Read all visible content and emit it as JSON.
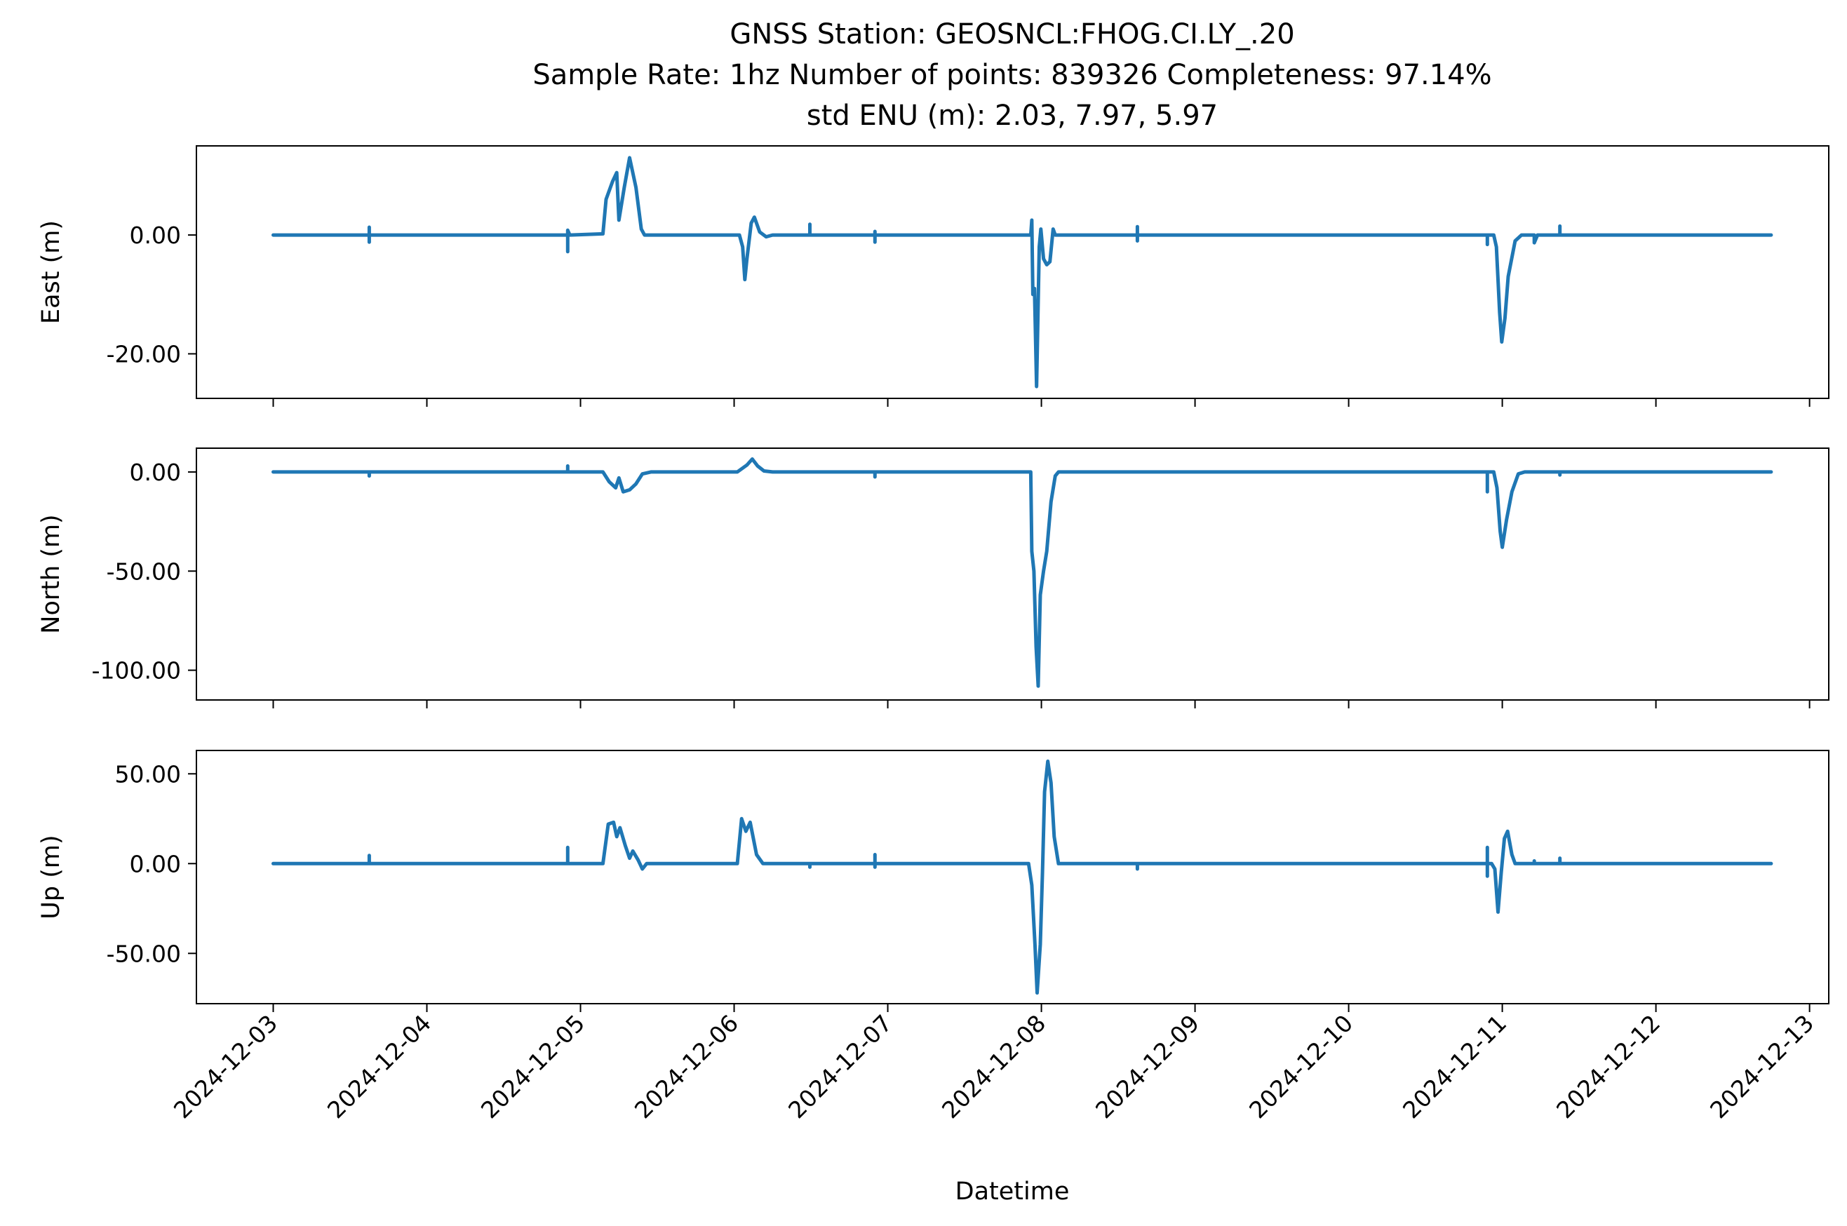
{
  "figure": {
    "title_lines": [
      "GNSS Station: GEOSNCL:FHOG.CI.LY_.20",
      "Sample Rate: 1hz   Number of points: 839326    Completeness:  97.14%",
      "std ENU (m):  2.03, 7.97, 5.97"
    ]
  },
  "chart_data": {
    "type": "line",
    "xlabel": "Datetime",
    "xlim": [
      "2024-12-02 12:00",
      "2024-12-13 03:00"
    ],
    "x_ticks": [
      "2024-12-03",
      "2024-12-04",
      "2024-12-05",
      "2024-12-06",
      "2024-12-07",
      "2024-12-08",
      "2024-12-09",
      "2024-12-10",
      "2024-12-11",
      "2024-12-12",
      "2024-12-13"
    ],
    "line_color": "#1f77b4",
    "grid": false,
    "legend": "none",
    "panels": [
      {
        "ylabel": "East (m)",
        "ylim": [
          -27.5,
          15.0
        ],
        "y_ticks": [
          0,
          -20
        ],
        "y_tick_labels": [
          "0.00",
          "-20.00"
        ],
        "series": [
          {
            "points": [
              [
                "2024-12-03 00:00",
                0.0
              ],
              [
                "2024-12-03 15:00",
                0.0
              ],
              [
                "2024-12-03 15:00",
                1.3
              ],
              [
                "2024-12-03 15:00",
                -1.2
              ],
              [
                "2024-12-03 15:00",
                0.0
              ],
              [
                "2024-12-04 22:00",
                0.0
              ],
              [
                "2024-12-04 22:00",
                -2.8
              ],
              [
                "2024-12-04 22:00",
                0.8
              ],
              [
                "2024-12-04 22:20",
                0.0
              ],
              [
                "2024-12-05 03:30",
                0.2
              ],
              [
                "2024-12-05 04:00",
                6.0
              ],
              [
                "2024-12-05 05:00",
                9.0
              ],
              [
                "2024-12-05 05:40",
                10.5
              ],
              [
                "2024-12-05 06:00",
                2.5
              ],
              [
                "2024-12-05 06:50",
                8.0
              ],
              [
                "2024-12-05 07:40",
                13.0
              ],
              [
                "2024-12-05 08:40",
                8.0
              ],
              [
                "2024-12-05 09:30",
                1.0
              ],
              [
                "2024-12-05 10:00",
                0.0
              ],
              [
                "2024-12-06 00:50",
                0.0
              ],
              [
                "2024-12-06 01:20",
                -2.0
              ],
              [
                "2024-12-06 01:40",
                -7.5
              ],
              [
                "2024-12-06 02:00",
                -4.0
              ],
              [
                "2024-12-06 02:40",
                2.0
              ],
              [
                "2024-12-06 03:10",
                3.0
              ],
              [
                "2024-12-06 04:00",
                0.5
              ],
              [
                "2024-12-06 05:00",
                -0.3
              ],
              [
                "2024-12-06 06:00",
                0.0
              ],
              [
                "2024-12-06 11:50",
                0.0
              ],
              [
                "2024-12-06 11:50",
                1.8
              ],
              [
                "2024-12-06 11:50",
                0.0
              ],
              [
                "2024-12-06 22:00",
                0.0
              ],
              [
                "2024-12-06 22:00",
                -1.2
              ],
              [
                "2024-12-06 22:00",
                0.6
              ],
              [
                "2024-12-06 22:00",
                0.0
              ],
              [
                "2024-12-07 22:20",
                0.0
              ],
              [
                "2024-12-07 22:30",
                2.5
              ],
              [
                "2024-12-07 22:40",
                -10.0
              ],
              [
                "2024-12-07 22:55",
                -9.0
              ],
              [
                "2024-12-07 23:15",
                -25.5
              ],
              [
                "2024-12-07 23:40",
                -2.0
              ],
              [
                "2024-12-07 23:55",
                1.0
              ],
              [
                "2024-12-08 00:20",
                -4.0
              ],
              [
                "2024-12-08 00:50",
                -5.0
              ],
              [
                "2024-12-08 01:20",
                -4.5
              ],
              [
                "2024-12-08 01:50",
                1.0
              ],
              [
                "2024-12-08 02:10",
                0.0
              ],
              [
                "2024-12-08 15:00",
                0.0
              ],
              [
                "2024-12-08 15:00",
                1.4
              ],
              [
                "2024-12-08 15:00",
                -1.0
              ],
              [
                "2024-12-08 15:00",
                0.0
              ],
              [
                "2024-12-10 21:40",
                0.0
              ],
              [
                "2024-12-10 21:40",
                -1.6
              ],
              [
                "2024-12-10 21:40",
                0.0
              ],
              [
                "2024-12-10 22:40",
                0.0
              ],
              [
                "2024-12-10 23:05",
                -2.0
              ],
              [
                "2024-12-10 23:35",
                -13.0
              ],
              [
                "2024-12-10 23:55",
                -18.0
              ],
              [
                "2024-12-11 00:25",
                -14.0
              ],
              [
                "2024-12-11 00:55",
                -7.0
              ],
              [
                "2024-12-11 02:00",
                -1.0
              ],
              [
                "2024-12-11 03:00",
                0.0
              ],
              [
                "2024-12-11 05:00",
                0.0
              ],
              [
                "2024-12-11 05:00",
                -1.3
              ],
              [
                "2024-12-11 05:30",
                0.0
              ],
              [
                "2024-12-11 09:00",
                0.0
              ],
              [
                "2024-12-11 09:00",
                1.5
              ],
              [
                "2024-12-11 09:00",
                0.0
              ],
              [
                "2024-12-12 18:00",
                0.0
              ]
            ]
          }
        ]
      },
      {
        "ylabel": "North (m)",
        "ylim": [
          -115.0,
          12.0
        ],
        "y_ticks": [
          0,
          -50,
          -100
        ],
        "y_tick_labels": [
          "0.00",
          "-50.00",
          "-100.00"
        ],
        "series": [
          {
            "points": [
              [
                "2024-12-03 00:00",
                0.0
              ],
              [
                "2024-12-03 15:00",
                0.0
              ],
              [
                "2024-12-03 15:00",
                -2.0
              ],
              [
                "2024-12-03 15:00",
                0.0
              ],
              [
                "2024-12-04 22:00",
                0.0
              ],
              [
                "2024-12-04 22:00",
                3.0
              ],
              [
                "2024-12-04 22:00",
                0.0
              ],
              [
                "2024-12-05 03:30",
                0.0
              ],
              [
                "2024-12-05 04:30",
                -5.0
              ],
              [
                "2024-12-05 05:30",
                -8.0
              ],
              [
                "2024-12-05 06:00",
                -3.0
              ],
              [
                "2024-12-05 06:40",
                -10.0
              ],
              [
                "2024-12-05 07:40",
                -9.0
              ],
              [
                "2024-12-05 08:40",
                -6.0
              ],
              [
                "2024-12-05 09:40",
                -1.0
              ],
              [
                "2024-12-05 11:00",
                0.0
              ],
              [
                "2024-12-06 00:30",
                0.0
              ],
              [
                "2024-12-06 02:00",
                3.5
              ],
              [
                "2024-12-06 02:50",
                6.5
              ],
              [
                "2024-12-06 03:40",
                3.0
              ],
              [
                "2024-12-06 04:40",
                0.5
              ],
              [
                "2024-12-06 06:00",
                0.0
              ],
              [
                "2024-12-06 22:00",
                0.0
              ],
              [
                "2024-12-06 22:00",
                -2.5
              ],
              [
                "2024-12-06 22:00",
                0.0
              ],
              [
                "2024-12-07 22:20",
                0.0
              ],
              [
                "2024-12-07 22:30",
                -40.0
              ],
              [
                "2024-12-07 22:50",
                -50.0
              ],
              [
                "2024-12-07 23:10",
                -88.0
              ],
              [
                "2024-12-07 23:30",
                -108.0
              ],
              [
                "2024-12-07 23:50",
                -62.0
              ],
              [
                "2024-12-08 00:20",
                -50.0
              ],
              [
                "2024-12-08 00:50",
                -40.0
              ],
              [
                "2024-12-08 01:30",
                -15.0
              ],
              [
                "2024-12-08 02:10",
                -2.0
              ],
              [
                "2024-12-08 02:40",
                0.0
              ],
              [
                "2024-12-10 21:40",
                0.0
              ],
              [
                "2024-12-10 21:40",
                -10.0
              ],
              [
                "2024-12-10 21:40",
                0.0
              ],
              [
                "2024-12-10 22:40",
                0.0
              ],
              [
                "2024-12-10 23:10",
                -8.0
              ],
              [
                "2024-12-10 23:40",
                -30.0
              ],
              [
                "2024-12-11 00:00",
                -38.0
              ],
              [
                "2024-12-11 00:40",
                -24.0
              ],
              [
                "2024-12-11 01:30",
                -10.0
              ],
              [
                "2024-12-11 02:30",
                -1.0
              ],
              [
                "2024-12-11 03:30",
                0.0
              ],
              [
                "2024-12-11 09:00",
                0.0
              ],
              [
                "2024-12-11 09:00",
                -1.5
              ],
              [
                "2024-12-11 09:00",
                0.0
              ],
              [
                "2024-12-12 18:00",
                0.0
              ]
            ]
          }
        ]
      },
      {
        "ylabel": "Up (m)",
        "ylim": [
          -78.0,
          63.0
        ],
        "y_ticks": [
          50,
          0,
          -50
        ],
        "y_tick_labels": [
          "50.00",
          "0.00",
          "-50.00"
        ],
        "series": [
          {
            "points": [
              [
                "2024-12-03 00:00",
                0.0
              ],
              [
                "2024-12-03 15:00",
                0.0
              ],
              [
                "2024-12-03 15:00",
                4.5
              ],
              [
                "2024-12-03 15:00",
                0.0
              ],
              [
                "2024-12-04 22:00",
                0.0
              ],
              [
                "2024-12-04 22:00",
                9.0
              ],
              [
                "2024-12-04 22:00",
                0.0
              ],
              [
                "2024-12-05 03:30",
                0.0
              ],
              [
                "2024-12-05 04:20",
                22.0
              ],
              [
                "2024-12-05 05:10",
                23.0
              ],
              [
                "2024-12-05 05:40",
                15.0
              ],
              [
                "2024-12-05 06:10",
                20.0
              ],
              [
                "2024-12-05 07:00",
                10.0
              ],
              [
                "2024-12-05 07:40",
                3.0
              ],
              [
                "2024-12-05 08:10",
                7.0
              ],
              [
                "2024-12-05 09:00",
                2.0
              ],
              [
                "2024-12-05 09:40",
                -3.0
              ],
              [
                "2024-12-05 10:20",
                0.0
              ],
              [
                "2024-12-06 00:30",
                0.0
              ],
              [
                "2024-12-06 01:10",
                25.0
              ],
              [
                "2024-12-06 01:50",
                18.0
              ],
              [
                "2024-12-06 02:30",
                23.0
              ],
              [
                "2024-12-06 03:30",
                5.0
              ],
              [
                "2024-12-06 04:30",
                0.0
              ],
              [
                "2024-12-06 11:50",
                0.0
              ],
              [
                "2024-12-06 11:50",
                -2.0
              ],
              [
                "2024-12-06 11:50",
                0.0
              ],
              [
                "2024-12-06 22:00",
                0.0
              ],
              [
                "2024-12-06 22:00",
                5.0
              ],
              [
                "2024-12-06 22:00",
                -2.0
              ],
              [
                "2024-12-06 22:00",
                0.0
              ],
              [
                "2024-12-07 22:00",
                0.0
              ],
              [
                "2024-12-07 22:30",
                -12.0
              ],
              [
                "2024-12-07 23:00",
                -45.0
              ],
              [
                "2024-12-07 23:20",
                -72.0
              ],
              [
                "2024-12-07 23:50",
                -45.0
              ],
              [
                "2024-12-08 00:10",
                -5.0
              ],
              [
                "2024-12-08 00:30",
                40.0
              ],
              [
                "2024-12-08 01:00",
                57.0
              ],
              [
                "2024-12-08 01:30",
                45.0
              ],
              [
                "2024-12-08 02:00",
                15.0
              ],
              [
                "2024-12-08 02:40",
                0.0
              ],
              [
                "2024-12-08 15:00",
                0.0
              ],
              [
                "2024-12-08 15:00",
                -3.0
              ],
              [
                "2024-12-08 15:00",
                0.0
              ],
              [
                "2024-12-10 21:40",
                0.0
              ],
              [
                "2024-12-10 21:40",
                9.0
              ],
              [
                "2024-12-10 21:40",
                -7.0
              ],
              [
                "2024-12-10 21:40",
                0.0
              ],
              [
                "2024-12-10 22:20",
                0.0
              ],
              [
                "2024-12-10 22:50",
                -3.0
              ],
              [
                "2024-12-10 23:20",
                -27.0
              ],
              [
                "2024-12-10 23:50",
                -5.0
              ],
              [
                "2024-12-11 00:20",
                14.0
              ],
              [
                "2024-12-11 00:50",
                18.0
              ],
              [
                "2024-12-11 01:30",
                5.0
              ],
              [
                "2024-12-11 02:00",
                0.0
              ],
              [
                "2024-12-11 05:00",
                0.0
              ],
              [
                "2024-12-11 05:00",
                1.5
              ],
              [
                "2024-12-11 05:00",
                0.0
              ],
              [
                "2024-12-11 09:00",
                0.0
              ],
              [
                "2024-12-11 09:00",
                3.0
              ],
              [
                "2024-12-11 09:00",
                0.0
              ],
              [
                "2024-12-12 18:00",
                0.0
              ]
            ]
          }
        ]
      }
    ]
  }
}
